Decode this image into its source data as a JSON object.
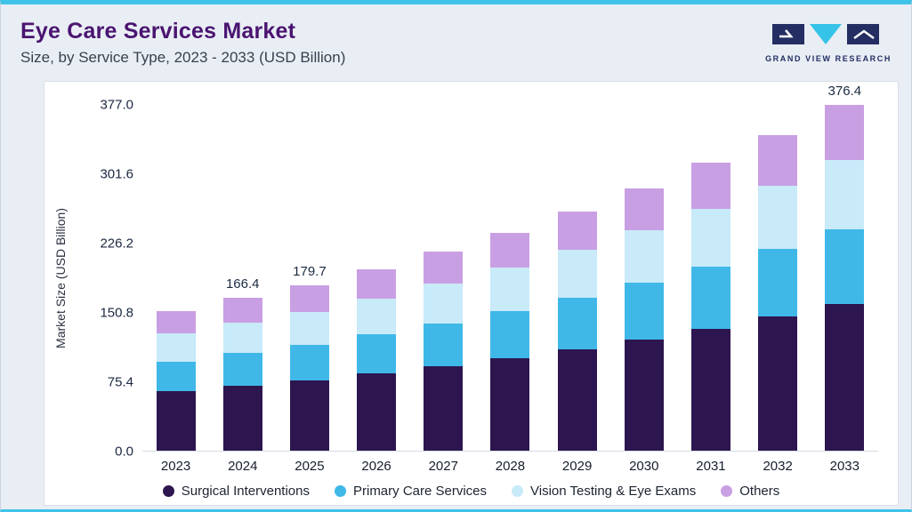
{
  "header": {
    "title": "Eye Care Services Market",
    "subtitle": "Size, by Service Type, 2023 - 2033 (USD Billion)",
    "brand": "GRAND VIEW RESEARCH"
  },
  "colors": {
    "accent_cyan": "#3fc3e8",
    "title_purple": "#4a1470",
    "brand_navy": "#252e63",
    "panel_background": "#ffffff",
    "page_background": "#e9eef5"
  },
  "chart_data": {
    "type": "bar",
    "stacked": true,
    "title": "Eye Care Services Market Size, by Service Type, 2023 - 2033 (USD Billion)",
    "xlabel": "",
    "ylabel": "Market Size (USD Billion)",
    "ylim": [
      0,
      377.0
    ],
    "yticks": [
      "0.0",
      "75.4",
      "150.8",
      "226.2",
      "301.6",
      "377.0"
    ],
    "grid": false,
    "legend_position": "bottom",
    "categories": [
      "2023",
      "2024",
      "2025",
      "2026",
      "2027",
      "2028",
      "2029",
      "2030",
      "2031",
      "2032",
      "2033"
    ],
    "series": [
      {
        "name": "Surgical Interventions",
        "color": "#2d164f",
        "values": [
          64.5,
          70.7,
          76.4,
          83.8,
          91.9,
          100.8,
          110.5,
          121.2,
          132.9,
          145.8,
          160.0
        ]
      },
      {
        "name": "Primary Care Services",
        "color": "#3fb8e8",
        "values": [
          32.6,
          35.8,
          38.6,
          42.4,
          46.5,
          51.0,
          55.9,
          61.3,
          67.3,
          73.8,
          80.9
        ]
      },
      {
        "name": "Vision Testing & Eye Exams",
        "color": "#c8eaf9",
        "values": [
          30.3,
          33.3,
          35.9,
          39.4,
          43.2,
          47.4,
          52.0,
          57.0,
          62.6,
          68.6,
          75.3
        ]
      },
      {
        "name": "Others",
        "color": "#c99fe3",
        "values": [
          24.3,
          26.6,
          28.8,
          31.5,
          34.6,
          37.9,
          41.6,
          45.7,
          50.0,
          54.9,
          60.2
        ]
      }
    ],
    "totals": [
      151.7,
      166.4,
      179.7,
      197.1,
      216.2,
      237.1,
      260.0,
      285.2,
      312.8,
      343.1,
      376.4
    ],
    "annotations": {
      "2024": "166.4",
      "2025": "179.7",
      "2033": "376.4"
    }
  }
}
